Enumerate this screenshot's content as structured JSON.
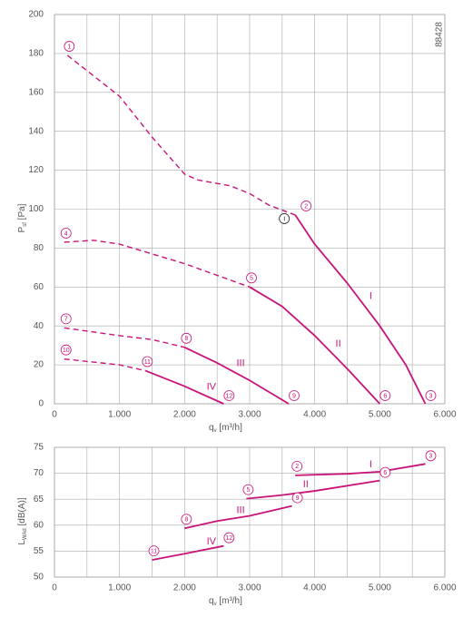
{
  "chart_data": [
    {
      "type": "line",
      "id_label": "88428",
      "xlabel": [
        "q",
        "v",
        " [m³/h]"
      ],
      "ylabel": [
        "P",
        "sf",
        " [Pa]"
      ],
      "xlim": [
        0,
        6000
      ],
      "ylim": [
        0,
        200
      ],
      "xticks": [
        {
          "value": 0,
          "label": "0"
        },
        {
          "value": 1000,
          "label": "1.000"
        },
        {
          "value": 2000,
          "label": "2.000"
        },
        {
          "value": 3000,
          "label": "3.000"
        },
        {
          "value": 4000,
          "label": "4.000"
        },
        {
          "value": 5000,
          "label": "5.000"
        },
        {
          "value": 6000,
          "label": "6.000"
        }
      ],
      "xgrid": [
        500,
        1500,
        2500,
        3500,
        4500,
        5500
      ],
      "yticks": [
        0,
        20,
        40,
        60,
        80,
        100,
        120,
        140,
        160,
        180,
        200
      ],
      "grid": true,
      "color": "#c8147a",
      "series": [
        {
          "style": "dashed",
          "start_label": "1",
          "x": [
            200,
            1000,
            1500,
            2000,
            2200,
            2700,
            3000,
            3300,
            3700
          ],
          "values": [
            179,
            158,
            137,
            118,
            115,
            112,
            108,
            102,
            97
          ]
        },
        {
          "style": "solid",
          "name": "I",
          "start_label": "2",
          "end_label": "3",
          "point_label": "I",
          "x": [
            3700,
            4000,
            4500,
            5000,
            5400,
            5700
          ],
          "values": [
            97,
            82,
            62,
            40,
            20,
            0
          ]
        },
        {
          "style": "dashed",
          "start_label": "4",
          "x": [
            150,
            600,
            1000,
            1500,
            2000,
            2500,
            3000
          ],
          "values": [
            83,
            84,
            82,
            77,
            72,
            66,
            60
          ]
        },
        {
          "style": "solid",
          "name": "II",
          "start_label": "5",
          "end_label": "6",
          "x": [
            3000,
            3500,
            4000,
            4500,
            5000
          ],
          "values": [
            60,
            50,
            35,
            18,
            0
          ]
        },
        {
          "style": "dashed",
          "start_label": "7",
          "x": [
            150,
            1000,
            1500,
            2000
          ],
          "values": [
            39,
            35,
            33,
            29
          ]
        },
        {
          "style": "solid",
          "name": "III",
          "start_label": "8",
          "end_label": "9",
          "x": [
            2000,
            2500,
            3000,
            3600
          ],
          "values": [
            29,
            21,
            12,
            0
          ]
        },
        {
          "style": "dashed",
          "start_label": "10",
          "x": [
            150,
            1000,
            1400
          ],
          "values": [
            23,
            20,
            17
          ]
        },
        {
          "style": "solid",
          "name": "IV",
          "start_label": "11",
          "end_label": "12",
          "x": [
            1400,
            2000,
            2600
          ],
          "values": [
            17,
            9,
            0
          ]
        }
      ]
    },
    {
      "type": "line",
      "xlabel": [
        "q",
        "v",
        " [m³/h]"
      ],
      "ylabel": [
        "L",
        "WAd",
        " [dB(A)]"
      ],
      "xlim": [
        0,
        6000
      ],
      "ylim": [
        50,
        75
      ],
      "xticks": [
        {
          "value": 0,
          "label": "0"
        },
        {
          "value": 1000,
          "label": "1.000"
        },
        {
          "value": 2000,
          "label": "2.000"
        },
        {
          "value": 3000,
          "label": "3.000"
        },
        {
          "value": 4000,
          "label": "4.000"
        },
        {
          "value": 5000,
          "label": "5.000"
        },
        {
          "value": 6000,
          "label": "6.000"
        }
      ],
      "xgrid": [
        500,
        1500,
        2500,
        3500,
        4500,
        5500
      ],
      "yticks": [
        50,
        55,
        60,
        65,
        70,
        75
      ],
      "grid": true,
      "color": "#c8147a",
      "series": [
        {
          "style": "solid",
          "name": "I",
          "start_label": "2",
          "end_label": "3",
          "x": [
            3700,
            4500,
            5000,
            5700
          ],
          "values": [
            69.6,
            69.9,
            70.3,
            71.8
          ]
        },
        {
          "style": "solid",
          "name": "II",
          "start_label": "5",
          "end_label": "6",
          "x": [
            2950,
            3500,
            4000,
            5000
          ],
          "values": [
            65.1,
            65.8,
            66.6,
            68.6
          ]
        },
        {
          "style": "solid",
          "name": "III",
          "start_label": "8",
          "end_label": "9",
          "x": [
            2000,
            2500,
            3000,
            3650
          ],
          "values": [
            59.4,
            60.8,
            61.8,
            63.7
          ]
        },
        {
          "style": "solid",
          "name": "IV",
          "start_label": "11",
          "end_label": "12",
          "x": [
            1500,
            2000,
            2600
          ],
          "values": [
            53.3,
            54.5,
            56
          ]
        }
      ]
    }
  ]
}
